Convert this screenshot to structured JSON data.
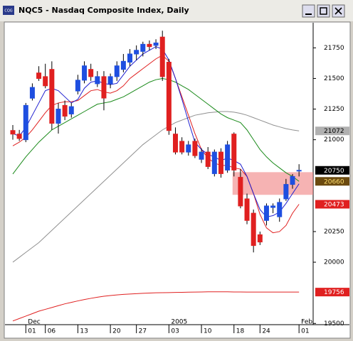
{
  "window": {
    "icon": "CQG"
  },
  "chart_data": {
    "type": "candlestick",
    "title": "NQC5 - Nasdaq Composite Index, Daily",
    "categories": [
      null,
      null,
      "01",
      null,
      null,
      "06",
      null,
      null,
      null,
      null,
      "13",
      null,
      null,
      null,
      null,
      "20",
      null,
      null,
      null,
      "27",
      null,
      null,
      null,
      null,
      "03",
      null,
      null,
      null,
      null,
      "10",
      null,
      null,
      null,
      null,
      "18",
      null,
      null,
      null,
      "24",
      null,
      null,
      null,
      null,
      null,
      "01"
    ],
    "period_labels": [
      null,
      null,
      "Dec",
      null,
      null,
      null,
      null,
      null,
      null,
      null,
      null,
      null,
      null,
      null,
      null,
      null,
      null,
      null,
      null,
      null,
      null,
      null,
      null,
      null,
      "2005",
      null,
      null,
      null,
      null,
      null,
      null,
      null,
      null,
      null,
      null,
      null,
      null,
      null,
      null,
      null,
      null,
      null,
      null,
      null,
      "Feb"
    ],
    "open": [
      21075,
      21046,
      21000,
      21339,
      21545,
      21515,
      21574,
      21134,
      21280,
      21210,
      21398,
      21486,
      21574,
      21457,
      21515,
      21457,
      21515,
      21574,
      21633,
      21700,
      21721,
      21779,
      21770,
      21838,
      21633,
      21046,
      20987,
      20899,
      20987,
      20840,
      20899,
      20723,
      20899,
      20752,
      21046,
      20693,
      20517,
      20400,
      20224,
      20341,
      20447,
      20371,
      20517,
      20635,
      20750
    ],
    "high": [
      21120,
      21080,
      21300,
      21460,
      21600,
      21620,
      21640,
      21300,
      21320,
      21300,
      21530,
      21640,
      21620,
      21560,
      21560,
      21540,
      21640,
      21700,
      21740,
      21770,
      21800,
      21810,
      21820,
      21890,
      21660,
      21100,
      21020,
      20990,
      21010,
      20930,
      20940,
      20920,
      20930,
      20990,
      21060,
      20760,
      20560,
      20430,
      20250,
      20480,
      20480,
      20520,
      20680,
      20720,
      20800
    ],
    "low": [
      21000,
      20990,
      20980,
      21320,
      21480,
      21420,
      21080,
      21050,
      21160,
      21180,
      21370,
      21460,
      21480,
      21430,
      21240,
      21420,
      21480,
      21550,
      21600,
      21650,
      21680,
      21730,
      21740,
      21480,
      21040,
      20880,
      20880,
      20870,
      20850,
      20810,
      20760,
      20700,
      20690,
      20730,
      20700,
      20440,
      20310,
      20080,
      20140,
      20300,
      20400,
      20330,
      20500,
      20600,
      20700
    ],
    "close": [
      21046,
      21010,
      21280,
      21427,
      21500,
      21440,
      21134,
      21250,
      21192,
      21270,
      21486,
      21603,
      21515,
      21515,
      21340,
      21515,
      21603,
      21640,
      21700,
      21730,
      21779,
      21760,
      21790,
      21515,
      21075,
      20899,
      20899,
      20958,
      20870,
      20899,
      20781,
      20899,
      20723,
      20958,
      20752,
      20459,
      20341,
      20136,
      20165,
      20459,
      20459,
      20488,
      20635,
      20700,
      20750
    ],
    "up_color": "#1f4fe0",
    "down_color": "#e02020",
    "lines": [
      {
        "color": "#909090",
        "values": [
          20000,
          20040,
          20080,
          20120,
          20160,
          20210,
          20260,
          20310,
          20360,
          20410,
          20460,
          20510,
          20560,
          20610,
          20660,
          20710,
          20760,
          20810,
          20860,
          20910,
          20960,
          21000,
          21040,
          21080,
          21110,
          21140,
          21160,
          21180,
          21200,
          21210,
          21220,
          21225,
          21230,
          21230,
          21225,
          21215,
          21200,
          21180,
          21160,
          21140,
          21120,
          21105,
          21090,
          21080,
          21072
        ]
      },
      {
        "color": "#1a8a1a",
        "values": [
          20720,
          20790,
          20860,
          20920,
          20980,
          21030,
          21080,
          21110,
          21140,
          21170,
          21200,
          21230,
          21260,
          21290,
          21300,
          21310,
          21330,
          21350,
          21380,
          21410,
          21440,
          21470,
          21490,
          21500,
          21490,
          21470,
          21440,
          21410,
          21370,
          21330,
          21290,
          21250,
          21210,
          21180,
          21160,
          21140,
          21080,
          21000,
          20920,
          20860,
          20810,
          20770,
          20730,
          20700,
          20660
        ]
      },
      {
        "color": "#e02020",
        "values": [
          20950,
          20980,
          21020,
          21080,
          21150,
          21220,
          21280,
          21300,
          21310,
          21310,
          21320,
          21360,
          21400,
          21410,
          21390,
          21380,
          21400,
          21440,
          21500,
          21540,
          21580,
          21620,
          21660,
          21690,
          21640,
          21500,
          21350,
          21200,
          21050,
          20920,
          20850,
          20810,
          20790,
          20790,
          20770,
          20760,
          20700,
          20560,
          20390,
          20280,
          20240,
          20250,
          20300,
          20400,
          20473
        ]
      },
      {
        "color": "#1f1fd0",
        "values": [
          21050,
          21030,
          21100,
          21200,
          21300,
          21400,
          21420,
          21400,
          21350,
          21300,
          21330,
          21420,
          21470,
          21480,
          21460,
          21450,
          21460,
          21530,
          21600,
          21650,
          21700,
          21730,
          21760,
          21740,
          21650,
          21500,
          21330,
          21150,
          20980,
          20920,
          20880,
          20860,
          20830,
          20850,
          20830,
          20800,
          20700,
          20560,
          20430,
          20370,
          20380,
          20410,
          20480,
          20560,
          20640
        ]
      },
      {
        "color": "#e02020",
        "values": [
          19520,
          19540,
          19560,
          19580,
          19600,
          19615,
          19630,
          19645,
          19660,
          19672,
          19684,
          19695,
          19705,
          19714,
          19722,
          19728,
          19733,
          19737,
          19740,
          19743,
          19746,
          19748,
          19750,
          19751,
          19752,
          19753,
          19754,
          19755,
          19756,
          19757,
          19758,
          19758,
          19758,
          19758,
          19757,
          19757,
          19756,
          19756,
          19756,
          19756,
          19756,
          19756,
          19756,
          19756,
          19756
        ]
      }
    ],
    "zone": {
      "low": 20550,
      "high": 20735,
      "from": "18",
      "color": "#f08080"
    },
    "markers": [
      {
        "value": 21072,
        "bg": "#b0b0b0",
        "fg": "#000000"
      },
      {
        "value": 20750,
        "bg": "#000000",
        "fg": "#ffffff"
      },
      {
        "value": 20660,
        "bg": "#6b4a10",
        "fg": "#ffe070"
      },
      {
        "value": 20473,
        "bg": "#e02020",
        "fg": "#ffffff"
      },
      {
        "value": 19756,
        "bg": "#e02020",
        "fg": "#ffffff"
      }
    ],
    "ylim": [
      19490,
      21955
    ],
    "yticks": [
      19500,
      20000,
      20250,
      21000,
      21250,
      21500,
      21750
    ]
  }
}
